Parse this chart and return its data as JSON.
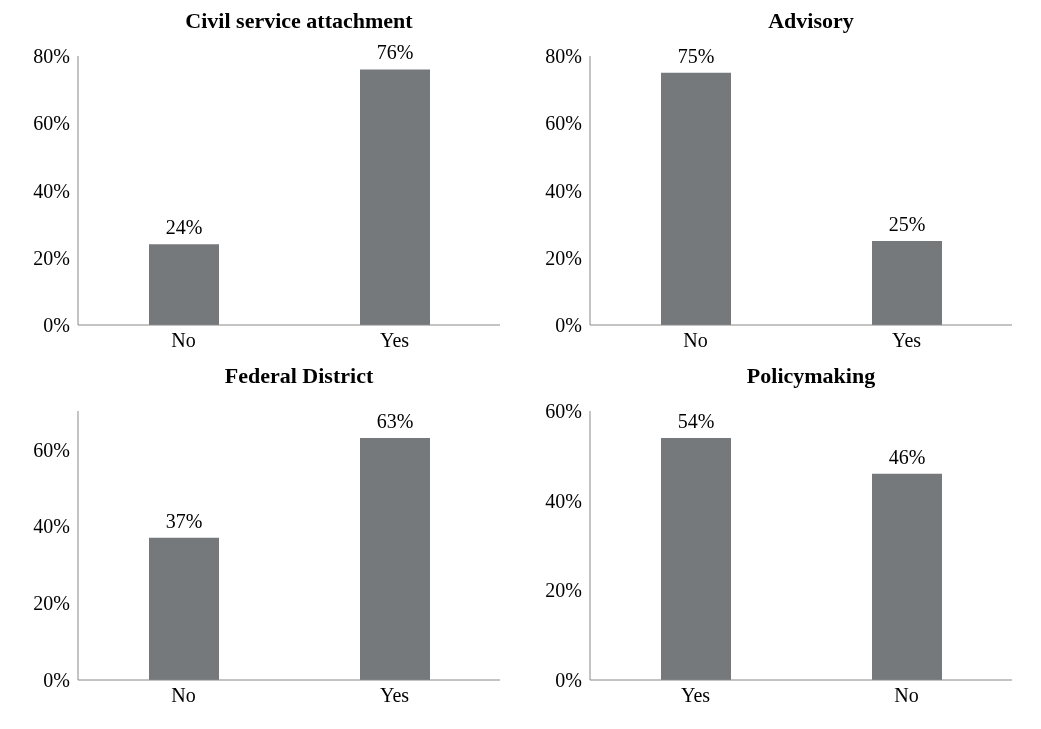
{
  "chart_data": [
    {
      "type": "bar",
      "title": "Civil service attachment",
      "categories": [
        "No",
        "Yes"
      ],
      "values": [
        24,
        76
      ],
      "value_labels": [
        "24%",
        "76%"
      ],
      "color": "#76797b",
      "ylim": [
        0,
        80
      ],
      "yticks": [
        {
          "value": 0,
          "label": "0%"
        },
        {
          "value": 20,
          "label": "20%"
        },
        {
          "value": 40,
          "label": "40%"
        },
        {
          "value": 60,
          "label": "60%"
        },
        {
          "value": 80,
          "label": "80%"
        }
      ]
    },
    {
      "type": "bar",
      "title": "Advisory",
      "categories": [
        "No",
        "Yes"
      ],
      "values": [
        75,
        25
      ],
      "value_labels": [
        "75%",
        "25%"
      ],
      "color": "#76797b",
      "ylim": [
        0,
        80
      ],
      "yticks": [
        {
          "value": 0,
          "label": "0%"
        },
        {
          "value": 20,
          "label": "20%"
        },
        {
          "value": 40,
          "label": "40%"
        },
        {
          "value": 60,
          "label": "60%"
        },
        {
          "value": 80,
          "label": "80%"
        }
      ]
    },
    {
      "type": "bar",
      "title": "Federal District",
      "categories": [
        "No",
        "Yes"
      ],
      "values": [
        37,
        63
      ],
      "value_labels": [
        "37%",
        "63%"
      ],
      "color": "#76797b",
      "ylim": [
        0,
        70
      ],
      "yticks": [
        {
          "value": 0,
          "label": "0%"
        },
        {
          "value": 20,
          "label": "20%"
        },
        {
          "value": 40,
          "label": "40%"
        },
        {
          "value": 60,
          "label": "60%"
        }
      ]
    },
    {
      "type": "bar",
      "title": "Policymaking",
      "categories": [
        "Yes",
        "No"
      ],
      "values": [
        54,
        46
      ],
      "value_labels": [
        "54%",
        "46%"
      ],
      "color": "#76797b",
      "ylim": [
        0,
        60
      ],
      "yticks": [
        {
          "value": 0,
          "label": "0%"
        },
        {
          "value": 20,
          "label": "20%"
        },
        {
          "value": 40,
          "label": "40%"
        },
        {
          "value": 60,
          "label": "60%"
        }
      ]
    }
  ]
}
